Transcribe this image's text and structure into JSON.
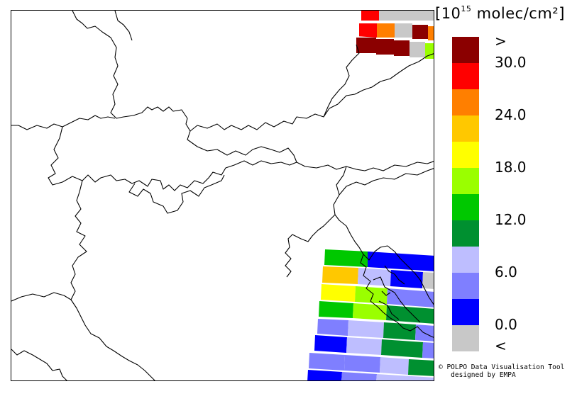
{
  "unit": {
    "prefix": "[10",
    "exponent": "15",
    "suffix": " molec/cm²]"
  },
  "legend": {
    "ticks": [
      ">",
      "30.0",
      "24.0",
      "18.0",
      "12.0",
      "6.0",
      "0.0",
      "<"
    ],
    "colors": [
      "#8b0000",
      "#ff0000",
      "#ff7f00",
      "#ffc800",
      "#ffff00",
      "#9aff00",
      "#00c800",
      "#009030",
      "#bebeff",
      "#7f7fff",
      "#0000ff",
      "#c8c8c8"
    ]
  },
  "credits": {
    "line1": "© POLPO Data Visualisation Tool",
    "line2": "designed by EMPA"
  }
}
